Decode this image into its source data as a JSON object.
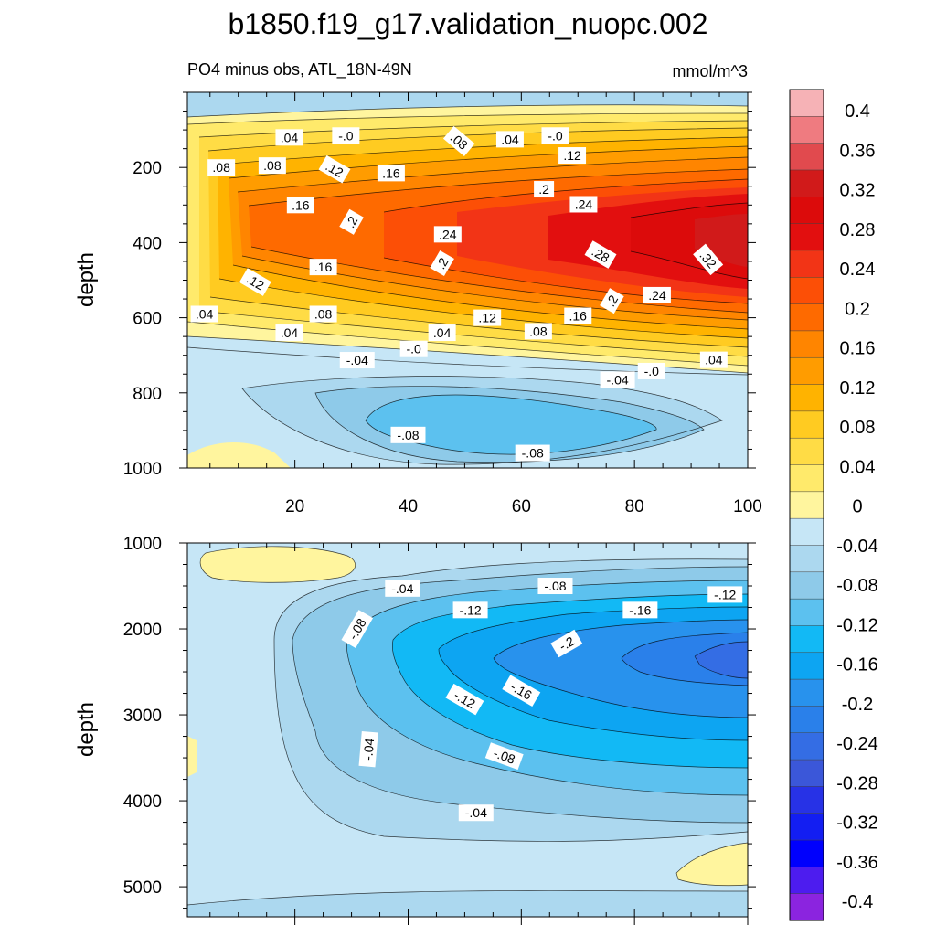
{
  "chart_data": {
    "type": "heatmap",
    "title": "b1850.f19_g17.validation_nuopc.002",
    "subtitle_left": "PO4 minus obs, ATL_18N-49N",
    "subtitle_right": "mmol/m^3",
    "panels": [
      {
        "name": "upper",
        "ylabel": "depth",
        "xlim": [
          1,
          100
        ],
        "ylim": [
          1000,
          0
        ],
        "x_ticks": [
          "20",
          "40",
          "60",
          "80",
          "100"
        ],
        "y_ticks": [
          "200",
          "400",
          "600",
          "800",
          "1000"
        ],
        "contour_labels": [
          {
            "text": ".04",
            "x": 19,
            "y": 120,
            "rot": 0
          },
          {
            "text": "-.0",
            "x": 29,
            "y": 115,
            "rot": 0
          },
          {
            "text": ".08",
            "x": 49,
            "y": 130,
            "rot": 40
          },
          {
            "text": ".04",
            "x": 58,
            "y": 125,
            "rot": 0
          },
          {
            "text": "-.0",
            "x": 66,
            "y": 115,
            "rot": 0
          },
          {
            "text": ".08",
            "x": 7,
            "y": 200,
            "rot": 0
          },
          {
            "text": ".08",
            "x": 16,
            "y": 195,
            "rot": 0
          },
          {
            "text": ".12",
            "x": 27,
            "y": 205,
            "rot": 30
          },
          {
            "text": ".16",
            "x": 37,
            "y": 215,
            "rot": 0
          },
          {
            "text": ".12",
            "x": 69,
            "y": 168,
            "rot": 0
          },
          {
            "text": ".2",
            "x": 64,
            "y": 258,
            "rot": 0
          },
          {
            "text": ".16",
            "x": 21,
            "y": 300,
            "rot": 0
          },
          {
            "text": ".24",
            "x": 71,
            "y": 298,
            "rot": 0
          },
          {
            "text": ".2",
            "x": 30,
            "y": 345,
            "rot": -60
          },
          {
            "text": ".24",
            "x": 47,
            "y": 378,
            "rot": 0
          },
          {
            "text": ".28",
            "x": 74,
            "y": 432,
            "rot": 30
          },
          {
            "text": ".32",
            "x": 93,
            "y": 445,
            "rot": 50
          },
          {
            "text": ".2",
            "x": 46,
            "y": 455,
            "rot": -60
          },
          {
            "text": ".16",
            "x": 25,
            "y": 465,
            "rot": 0
          },
          {
            "text": ".12",
            "x": 13,
            "y": 505,
            "rot": 30
          },
          {
            "text": ".2",
            "x": 76,
            "y": 555,
            "rot": -60
          },
          {
            "text": ".24",
            "x": 84,
            "y": 540,
            "rot": 0
          },
          {
            "text": ".04",
            "x": 4,
            "y": 590,
            "rot": 0
          },
          {
            "text": ".08",
            "x": 25,
            "y": 590,
            "rot": 0
          },
          {
            "text": ".12",
            "x": 54,
            "y": 600,
            "rot": 0
          },
          {
            "text": ".16",
            "x": 70,
            "y": 595,
            "rot": 0
          },
          {
            "text": ".04",
            "x": 19,
            "y": 640,
            "rot": 0
          },
          {
            "text": ".04",
            "x": 46,
            "y": 640,
            "rot": 0
          },
          {
            "text": ".08",
            "x": 63,
            "y": 636,
            "rot": 0
          },
          {
            "text": "-.0",
            "x": 41,
            "y": 683,
            "rot": 0
          },
          {
            "text": "-.04",
            "x": 31,
            "y": 713,
            "rot": 0
          },
          {
            "text": ".04",
            "x": 94,
            "y": 712,
            "rot": 0
          },
          {
            "text": "-.0",
            "x": 83,
            "y": 742,
            "rot": 0
          },
          {
            "text": "-.04",
            "x": 77,
            "y": 765,
            "rot": 0
          },
          {
            "text": "-.08",
            "x": 40,
            "y": 912,
            "rot": 0
          },
          {
            "text": "-.08",
            "x": 62,
            "y": 960,
            "rot": 0
          }
        ]
      },
      {
        "name": "lower",
        "ylabel": "depth",
        "xlim": [
          1,
          100
        ],
        "ylim": [
          5350,
          1000
        ],
        "y_ticks": [
          "1000",
          "2000",
          "3000",
          "4000",
          "5000"
        ],
        "contour_labels": [
          {
            "text": "-.04",
            "x": 39,
            "y": 1530,
            "rot": 0
          },
          {
            "text": "-.08",
            "x": 66,
            "y": 1500,
            "rot": 0
          },
          {
            "text": "-.12",
            "x": 96,
            "y": 1600,
            "rot": 0
          },
          {
            "text": "-.12",
            "x": 51,
            "y": 1780,
            "rot": 0
          },
          {
            "text": "-.16",
            "x": 81,
            "y": 1780,
            "rot": 0
          },
          {
            "text": "-.08",
            "x": 31,
            "y": 2000,
            "rot": -60
          },
          {
            "text": "-.2",
            "x": 68,
            "y": 2170,
            "rot": -30
          },
          {
            "text": "-.16",
            "x": 60,
            "y": 2720,
            "rot": 30
          },
          {
            "text": "-.12",
            "x": 50,
            "y": 2820,
            "rot": 30
          },
          {
            "text": "-.08",
            "x": 57,
            "y": 3480,
            "rot": 20
          },
          {
            "text": "-.04",
            "x": 33,
            "y": 3400,
            "rot": -85
          },
          {
            "text": "-.04",
            "x": 52,
            "y": 4140,
            "rot": 0
          }
        ]
      }
    ],
    "colorbar": {
      "levels": [
        "0.4",
        "0.36",
        "0.32",
        "0.28",
        "0.24",
        "0.2",
        "0.16",
        "0.12",
        "0.08",
        "0.04",
        "0",
        "-0.04",
        "-0.08",
        "-0.12",
        "-0.16",
        "-0.2",
        "-0.24",
        "-0.28",
        "-0.32",
        "-0.36",
        "-0.4"
      ],
      "colors": [
        "#f6b2b6",
        "#ef7b80",
        "#e14a4e",
        "#d11a1a",
        "#dc0b0b",
        "#e20f0f",
        "#f23416",
        "#fc4f06",
        "#fe6a00",
        "#ff8500",
        "#ff9c00",
        "#ffb300",
        "#ffcb21",
        "#ffdc45",
        "#ffea6b",
        "#fff59e",
        "#c6e6f6",
        "#acd8ef",
        "#8ecae9",
        "#5cc1ef",
        "#12b9f5",
        "#0da5f2",
        "#2892ed",
        "#2a80ea",
        "#346de4",
        "#3b57d9",
        "#2732e6",
        "#131ef2",
        "#0000fd",
        "#4d1cef",
        "#8b24df"
      ]
    }
  }
}
